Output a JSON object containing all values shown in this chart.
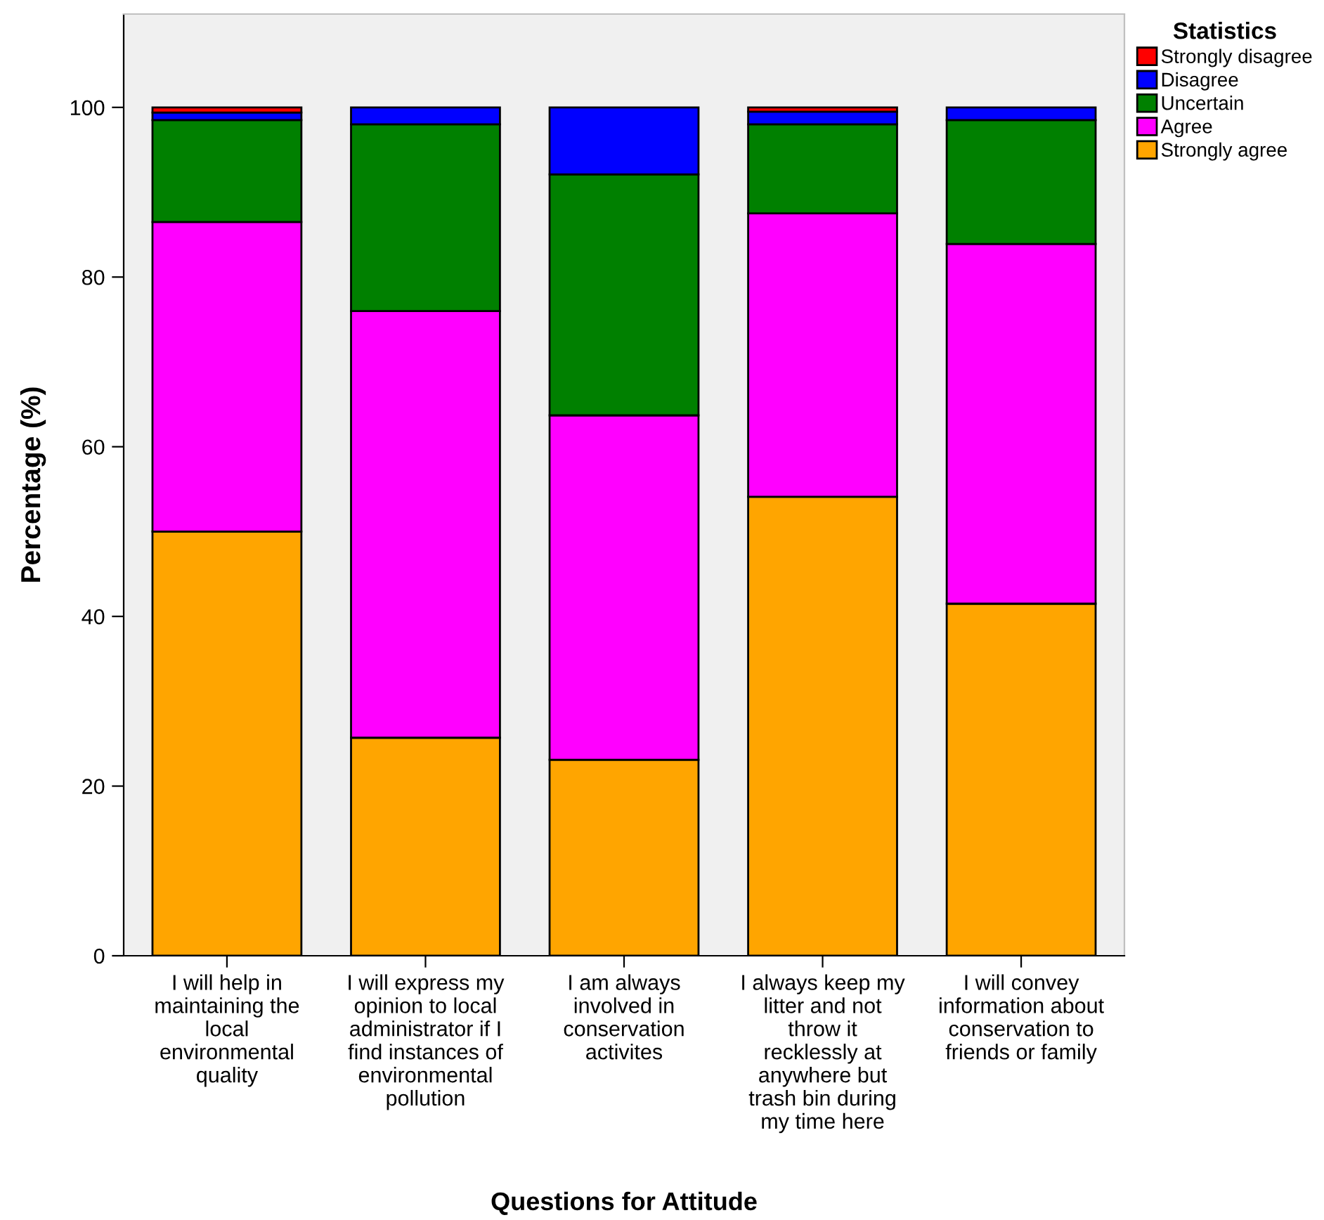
{
  "chart_data": {
    "type": "bar",
    "stacked": true,
    "xlabel": "Questions for Attitude",
    "ylabel": "Percentage (%)",
    "legend_title": "Statistics",
    "legend": "top right",
    "grid": false,
    "categories": [
      "I will help in\nmaintaining the\nlocal\nenvironmental\nquality",
      "I will express my\nopinion to local\nadministrator if I\nfind instances of\nenvironmental\npollution",
      "I am always\ninvolved in\nconservation\nactivites",
      "I always keep my\nlitter and not\nthrow it\nrecklessly at\nanywhere but\ntrash bin during\nmy time here",
      "I will convey\ninformation about\nconservation to\nfriends or family"
    ],
    "ylim": [
      0,
      111
    ],
    "yticks": [
      0,
      20,
      40,
      60,
      80,
      100
    ],
    "series": [
      {
        "name": "Strongly agree",
        "color": "#ffa500",
        "values": [
          50,
          25.7,
          23.1,
          54.1,
          41.5
        ]
      },
      {
        "name": "Agree",
        "color": "#ff00ff",
        "values": [
          36.5,
          50.3,
          40.6,
          33.4,
          42.4
        ]
      },
      {
        "name": "Uncertain",
        "color": "#008000",
        "values": [
          12,
          22,
          28.4,
          10.5,
          14.6
        ]
      },
      {
        "name": "Disagree",
        "color": "#0000ff",
        "values": [
          0.9,
          2,
          7.9,
          1.5,
          1.5
        ]
      },
      {
        "name": "Strongly disagree",
        "color": "#ff0000",
        "values": [
          0.6,
          0,
          0,
          0.5,
          0
        ]
      }
    ]
  }
}
